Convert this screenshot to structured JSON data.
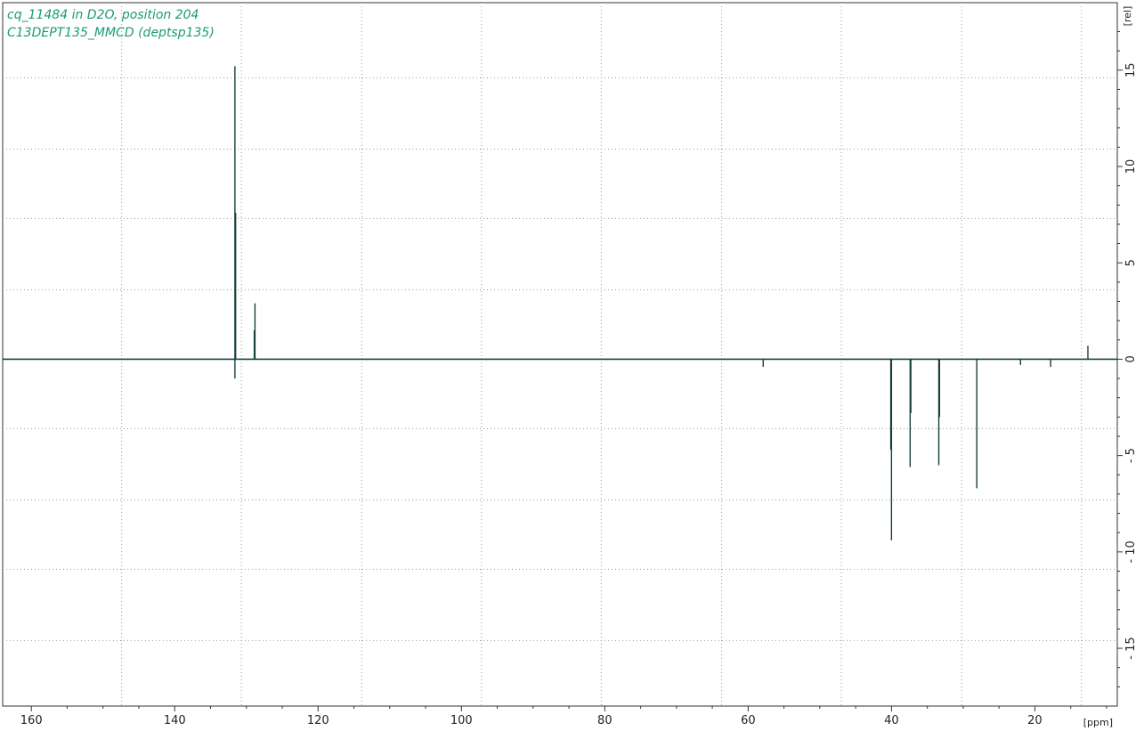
{
  "chart_data": {
    "type": "line",
    "title_lines": [
      "cq_11484 in D2O, position 204",
      "C13DEPT135_MMCD (deptsp135)"
    ],
    "xlabel": "[ppm]",
    "ylabel": "[rel]",
    "xlim": [
      164,
      8.5
    ],
    "ylim": [
      -18,
      18.5
    ],
    "x_reversed": true,
    "x_ticks": [
      160,
      140,
      120,
      100,
      80,
      60,
      40,
      20
    ],
    "x_tick_labels": [
      "160",
      "140",
      "120",
      "100",
      "80",
      "60",
      "40",
      "20"
    ],
    "y_ticks": [
      15,
      10,
      5,
      0,
      -5,
      -10,
      -15
    ],
    "y_tick_labels": [
      "15",
      "10",
      "5",
      "0",
      "- 5",
      "- 10",
      "- 15"
    ],
    "x_gridlines": [
      147.4,
      130.7,
      113.9,
      97.2,
      80.5,
      63.7,
      47.0,
      30.2,
      13.5
    ],
    "y_gridlines": [
      14.6,
      10.9,
      7.3,
      3.6,
      -3.6,
      -7.3,
      -10.9,
      -14.6
    ],
    "grid": "dotted",
    "legend": "none",
    "colors": {
      "spectrum": "#17403f",
      "title": "#1a9a78",
      "grid": "#9a9a9a",
      "axis": "#333333"
    },
    "peaks": [
      {
        "ppm": 131.6,
        "intensity": 15.2
      },
      {
        "ppm": 131.5,
        "intensity": 7.6
      },
      {
        "ppm": 131.6,
        "intensity": -1.0
      },
      {
        "ppm": 128.8,
        "intensity": 2.9
      },
      {
        "ppm": 128.9,
        "intensity": 1.5
      },
      {
        "ppm": 57.9,
        "intensity": -0.4
      },
      {
        "ppm": 40.0,
        "intensity": -9.4
      },
      {
        "ppm": 40.1,
        "intensity": -4.7
      },
      {
        "ppm": 37.4,
        "intensity": -5.6
      },
      {
        "ppm": 37.3,
        "intensity": -2.8
      },
      {
        "ppm": 33.4,
        "intensity": -5.5
      },
      {
        "ppm": 33.3,
        "intensity": -3.0
      },
      {
        "ppm": 28.1,
        "intensity": -6.7
      },
      {
        "ppm": 22.0,
        "intensity": -0.3
      },
      {
        "ppm": 17.8,
        "intensity": -0.4
      },
      {
        "ppm": 12.6,
        "intensity": 0.7
      }
    ]
  }
}
